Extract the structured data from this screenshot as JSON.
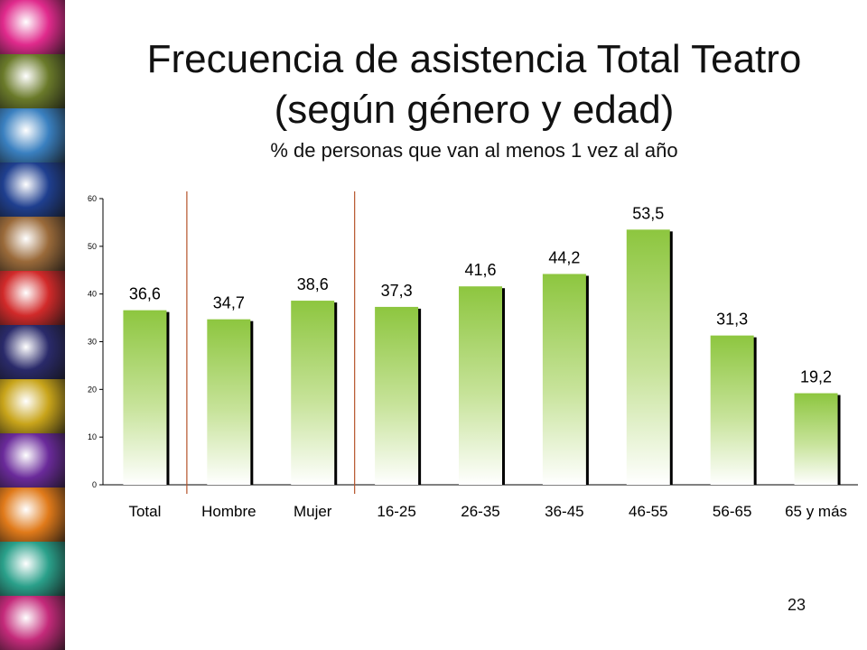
{
  "slide": {
    "title_line1": "Frecuencia de asistencia Total Teatro",
    "title_line2": "(según género y edad)",
    "subtitle": "% de personas que van al menos 1 vez al año",
    "page_number": "23"
  },
  "decoration": {
    "photo_strip_colors": [
      "#e02a8c",
      "#6a7a2a",
      "#3a80c0",
      "#1f3f8f",
      "#9a6a3a",
      "#d12a2a",
      "#2a2a6a",
      "#c8a41a",
      "#6a2a9a",
      "#e07a1a",
      "#2aa08a",
      "#c42a7a"
    ]
  },
  "chart_data": {
    "type": "bar",
    "categories": [
      "Total",
      "Hombre",
      "Mujer",
      "16-25",
      "26-35",
      "36-45",
      "46-55",
      "56-65",
      "65 y más"
    ],
    "values": [
      36.6,
      34.7,
      38.6,
      37.3,
      41.6,
      44.2,
      53.5,
      31.3,
      19.2
    ],
    "data_labels": [
      "36,6",
      "34,7",
      "38,6",
      "37,3",
      "41,6",
      "44,2",
      "53,5",
      "31,3",
      "19,2"
    ],
    "ylim": [
      0,
      60
    ],
    "yticks": [
      0,
      10,
      20,
      30,
      40,
      50,
      60
    ],
    "group_separators_after": [
      "Total",
      "Mujer"
    ],
    "xlabel": "",
    "ylabel": "",
    "grid": false,
    "bar_color_top": "#8dc63f",
    "bar_color_bottom": "#ffffff",
    "separator_color": "#b5532a"
  }
}
